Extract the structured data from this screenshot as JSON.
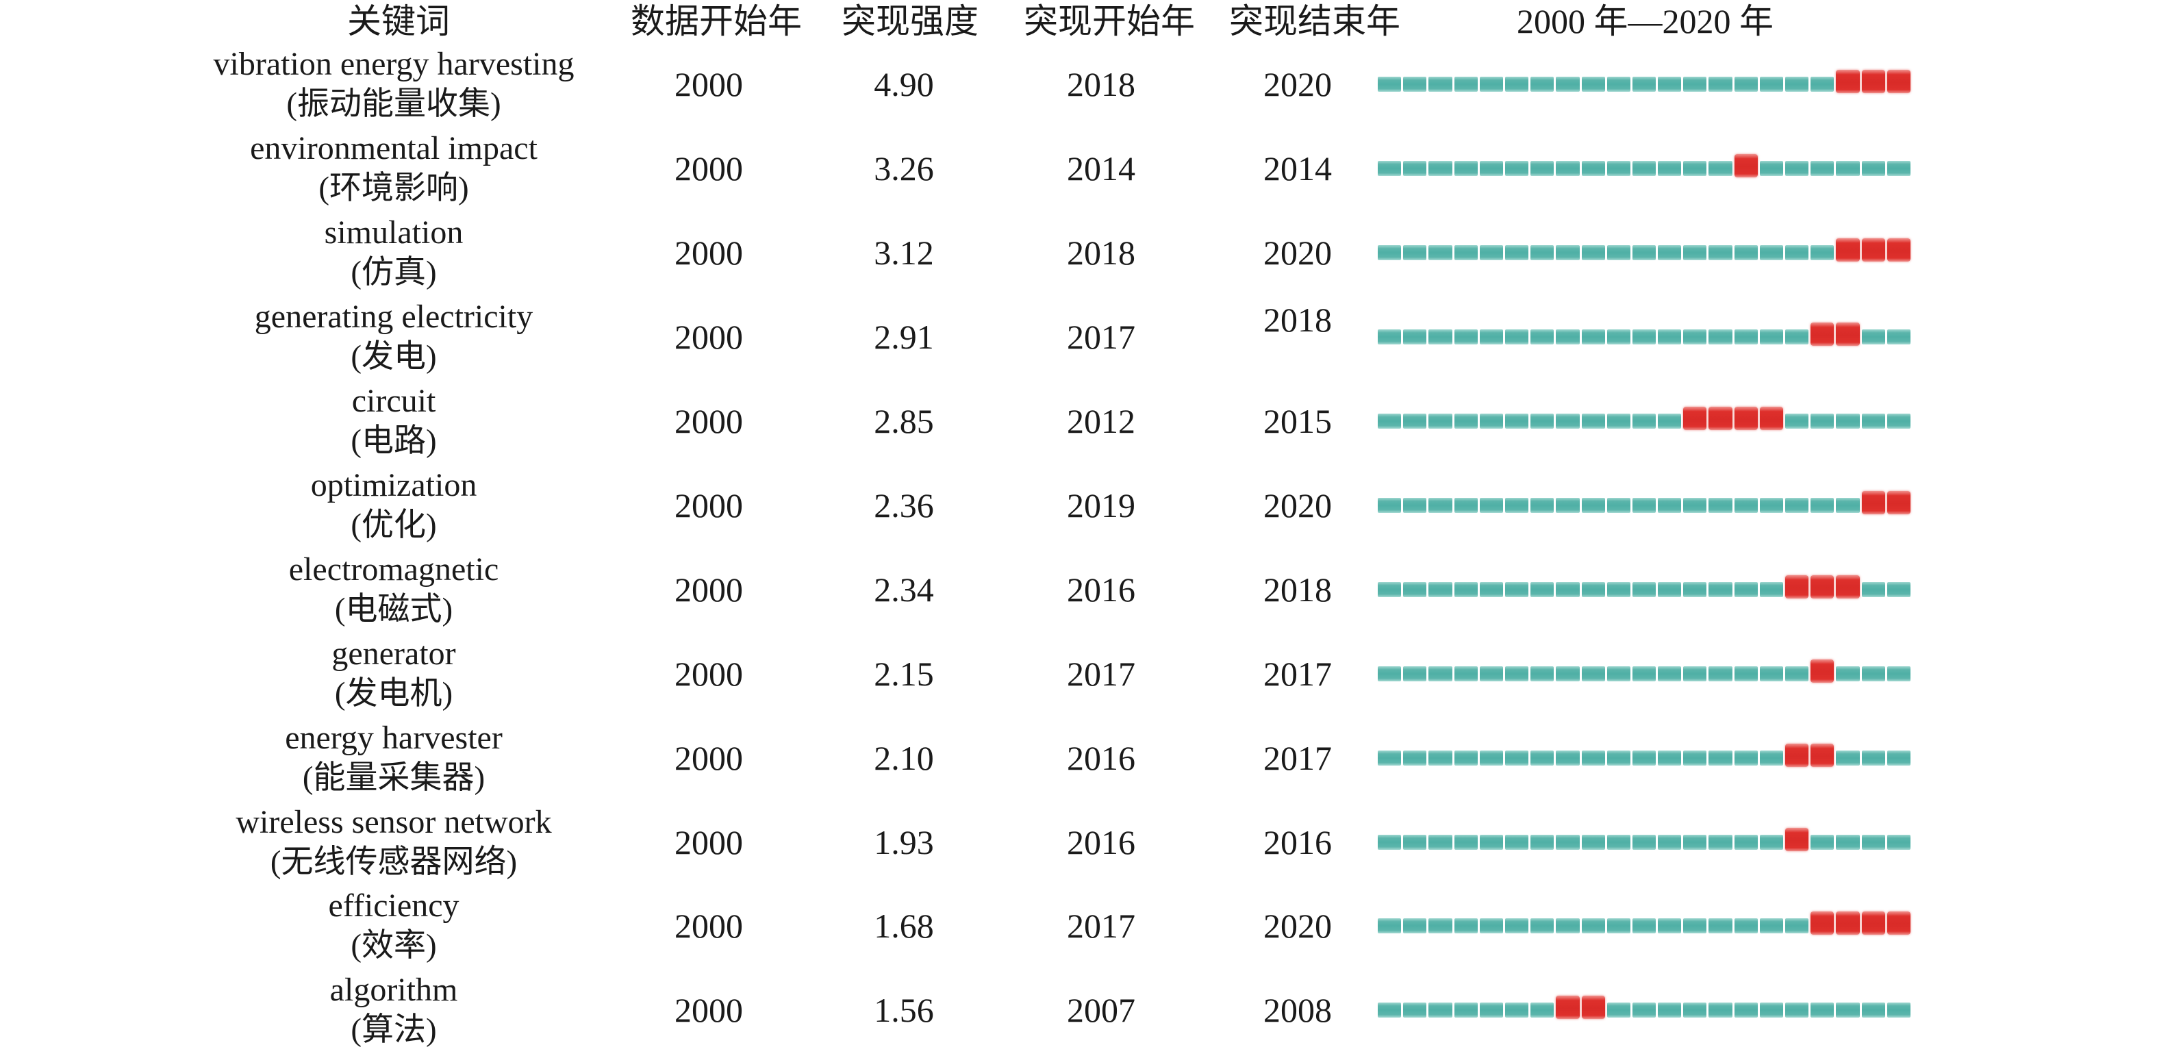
{
  "figure": {
    "background": "#ffffff",
    "text_color": "#1a1a1a"
  },
  "colors": {
    "teal": "#4fb0a6",
    "red": "#d92b28"
  },
  "header": {
    "keyword": "关键词",
    "data_start": "数据开始年",
    "strength": "突现强度",
    "burst_start": "突现开始年",
    "burst_end": "突现结束年",
    "timeline": "2000 年—2020 年"
  },
  "chart_data": {
    "type": "table",
    "title": "2000 年—2020 年",
    "timeline": {
      "start_year": 2000,
      "end_year": 2020,
      "segments_per_row": 21
    },
    "columns": [
      "关键词",
      "数据开始年",
      "突现强度",
      "突现开始年",
      "突现结束年",
      "2000 年—2020 年"
    ],
    "rows": [
      {
        "keyword_en": "vibration energy harvesting",
        "keyword_zh": "(振动能量收集)",
        "data_start": "2000",
        "strength": "4.90",
        "burst_start": 2018,
        "burst_end": 2020
      },
      {
        "keyword_en": "environmental impact",
        "keyword_zh": "(环境影响)",
        "data_start": "2000",
        "strength": "3.26",
        "burst_start": 2014,
        "burst_end": 2014
      },
      {
        "keyword_en": "simulation",
        "keyword_zh": "(仿真)",
        "data_start": "2000",
        "strength": "3.12",
        "burst_start": 2018,
        "burst_end": 2020
      },
      {
        "keyword_en": "generating electricity",
        "keyword_zh": "(发电)",
        "data_start": "2000",
        "strength": "2.91",
        "burst_start": 2017,
        "burst_end": 2018,
        "burst_end_raised": true
      },
      {
        "keyword_en": "circuit",
        "keyword_zh": "(电路)",
        "data_start": "2000",
        "strength": "2.85",
        "burst_start": 2012,
        "burst_end": 2015
      },
      {
        "keyword_en": "optimization",
        "keyword_zh": "(优化)",
        "data_start": "2000",
        "strength": "2.36",
        "burst_start": 2019,
        "burst_end": 2020
      },
      {
        "keyword_en": "electromagnetic",
        "keyword_zh": "(电磁式)",
        "data_start": "2000",
        "strength": "2.34",
        "burst_start": 2016,
        "burst_end": 2018
      },
      {
        "keyword_en": "generator",
        "keyword_zh": "(发电机)",
        "data_start": "2000",
        "strength": "2.15",
        "burst_start": 2017,
        "burst_end": 2017
      },
      {
        "keyword_en": "energy harvester",
        "keyword_zh": "(能量采集器)",
        "data_start": "2000",
        "strength": "2.10",
        "burst_start": 2016,
        "burst_end": 2017
      },
      {
        "keyword_en": "wireless sensor network",
        "keyword_zh": "(无线传感器网络)",
        "data_start": "2000",
        "strength": "1.93",
        "burst_start": 2016,
        "burst_end": 2016
      },
      {
        "keyword_en": "efficiency",
        "keyword_zh": "(效率)",
        "data_start": "2000",
        "strength": "1.68",
        "burst_start": 2017,
        "burst_end": 2020
      },
      {
        "keyword_en": "algorithm",
        "keyword_zh": "(算法)",
        "data_start": "2000",
        "strength": "1.56",
        "burst_start": 2007,
        "burst_end": 2008
      }
    ]
  }
}
